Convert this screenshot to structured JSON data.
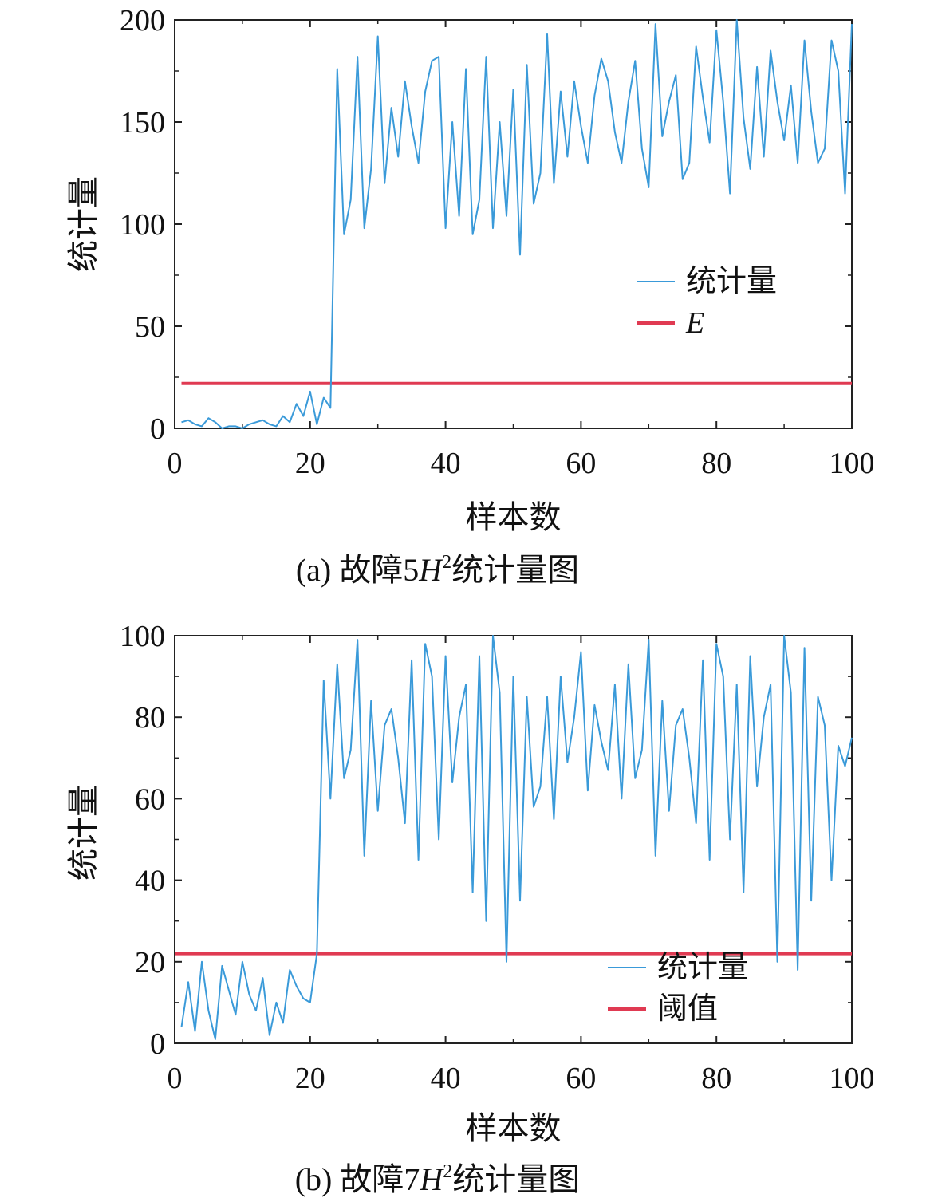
{
  "chart_data": [
    {
      "type": "line",
      "caption": {
        "prefix": "(a) 故障5",
        "var": "H",
        "sup": "2",
        "suffix": "统计量图"
      },
      "xlabel": "样本数",
      "ylabel": "统计量",
      "xlim": [
        0,
        100
      ],
      "ylim": [
        0,
        200
      ],
      "xticks": [
        "0",
        "20",
        "40",
        "60",
        "80",
        "100"
      ],
      "yticks": [
        "0",
        "50",
        "100",
        "150",
        "200"
      ],
      "legend_position": "center-right",
      "grid": false,
      "series": [
        {
          "name": "统计量",
          "color": "#3a9ad9",
          "x": [
            1,
            2,
            3,
            4,
            5,
            6,
            7,
            8,
            9,
            10,
            11,
            12,
            13,
            14,
            15,
            16,
            17,
            18,
            19,
            20,
            21,
            22,
            23,
            24,
            25,
            26,
            27,
            28,
            29,
            30,
            31,
            32,
            33,
            34,
            35,
            36,
            37,
            38,
            39,
            40,
            41,
            42,
            43,
            44,
            45,
            46,
            47,
            48,
            49,
            50,
            51,
            52,
            53,
            54,
            55,
            56,
            57,
            58,
            59,
            60,
            61,
            62,
            63,
            64,
            65,
            66,
            67,
            68,
            69,
            70,
            71,
            72,
            73,
            74,
            75,
            76,
            77,
            78,
            79,
            80,
            81,
            82,
            83,
            84,
            85,
            86,
            87,
            88,
            89,
            90,
            91,
            92,
            93,
            94,
            95,
            96,
            97,
            98,
            99,
            100
          ],
          "y": [
            3,
            4,
            2,
            1,
            5,
            3,
            0,
            1,
            1,
            0,
            2,
            3,
            4,
            2,
            1,
            6,
            3,
            12,
            6,
            18,
            2,
            15,
            10,
            176,
            95,
            112,
            182,
            98,
            127,
            192,
            120,
            157,
            133,
            170,
            148,
            130,
            165,
            180,
            182,
            98,
            150,
            104,
            176,
            95,
            112,
            182,
            98,
            150,
            104,
            166,
            85,
            178,
            110,
            125,
            193,
            120,
            165,
            133,
            170,
            148,
            130,
            163,
            181,
            170,
            145,
            130,
            160,
            180,
            137,
            118,
            198,
            143,
            160,
            173,
            122,
            130,
            187,
            162,
            140,
            195,
            160,
            115,
            200,
            152,
            127,
            177,
            133,
            185,
            160,
            141,
            168,
            130,
            190,
            155,
            130,
            137,
            190,
            175,
            115,
            198
          ]
        },
        {
          "name": "E",
          "color": "#e03a52",
          "x": [
            1,
            100
          ],
          "y": [
            22,
            22
          ]
        }
      ]
    },
    {
      "type": "line",
      "caption": {
        "prefix": "(b) 故障7",
        "var": "H",
        "sup": "2",
        "suffix": "统计量图"
      },
      "xlabel": "样本数",
      "ylabel": "统计量",
      "xlim": [
        0,
        100
      ],
      "ylim": [
        0,
        100
      ],
      "xticks": [
        "0",
        "20",
        "40",
        "60",
        "80",
        "100"
      ],
      "yticks": [
        "0",
        "20",
        "40",
        "60",
        "80",
        "100"
      ],
      "legend_position": "bottom-right",
      "grid": false,
      "series": [
        {
          "name": "统计量",
          "color": "#3a9ad9",
          "x": [
            1,
            2,
            3,
            4,
            5,
            6,
            7,
            8,
            9,
            10,
            11,
            12,
            13,
            14,
            15,
            16,
            17,
            18,
            19,
            20,
            21,
            22,
            23,
            24,
            25,
            26,
            27,
            28,
            29,
            30,
            31,
            32,
            33,
            34,
            35,
            36,
            37,
            38,
            39,
            40,
            41,
            42,
            43,
            44,
            45,
            46,
            47,
            48,
            49,
            50,
            51,
            52,
            53,
            54,
            55,
            56,
            57,
            58,
            59,
            60,
            61,
            62,
            63,
            64,
            65,
            66,
            67,
            68,
            69,
            70,
            71,
            72,
            73,
            74,
            75,
            76,
            77,
            78,
            79,
            80,
            81,
            82,
            83,
            84,
            85,
            86,
            87,
            88,
            89,
            90,
            91,
            92,
            93,
            94,
            95,
            96,
            97,
            98,
            99,
            100
          ],
          "y": [
            4,
            15,
            3,
            20,
            8,
            1,
            19,
            13,
            7,
            20,
            12,
            8,
            16,
            2,
            10,
            5,
            18,
            14,
            11,
            10,
            22,
            89,
            60,
            93,
            65,
            72,
            99,
            46,
            84,
            57,
            78,
            82,
            70,
            54,
            94,
            45,
            98,
            90,
            50,
            95,
            64,
            80,
            88,
            37,
            95,
            30,
            100,
            86,
            20,
            90,
            35,
            85,
            58,
            63,
            85,
            55,
            90,
            69,
            80,
            96,
            62,
            83,
            74,
            67,
            88,
            60,
            93,
            65,
            72,
            99,
            46,
            84,
            57,
            78,
            82,
            70,
            54,
            94,
            45,
            98,
            90,
            50,
            88,
            37,
            95,
            63,
            80,
            88,
            20,
            100,
            86,
            18,
            97,
            35,
            85,
            78,
            40,
            73,
            68,
            75
          ]
        },
        {
          "name": "阈值",
          "color": "#e03a52",
          "x": [
            0,
            100
          ],
          "y": [
            22,
            22
          ]
        }
      ]
    }
  ]
}
